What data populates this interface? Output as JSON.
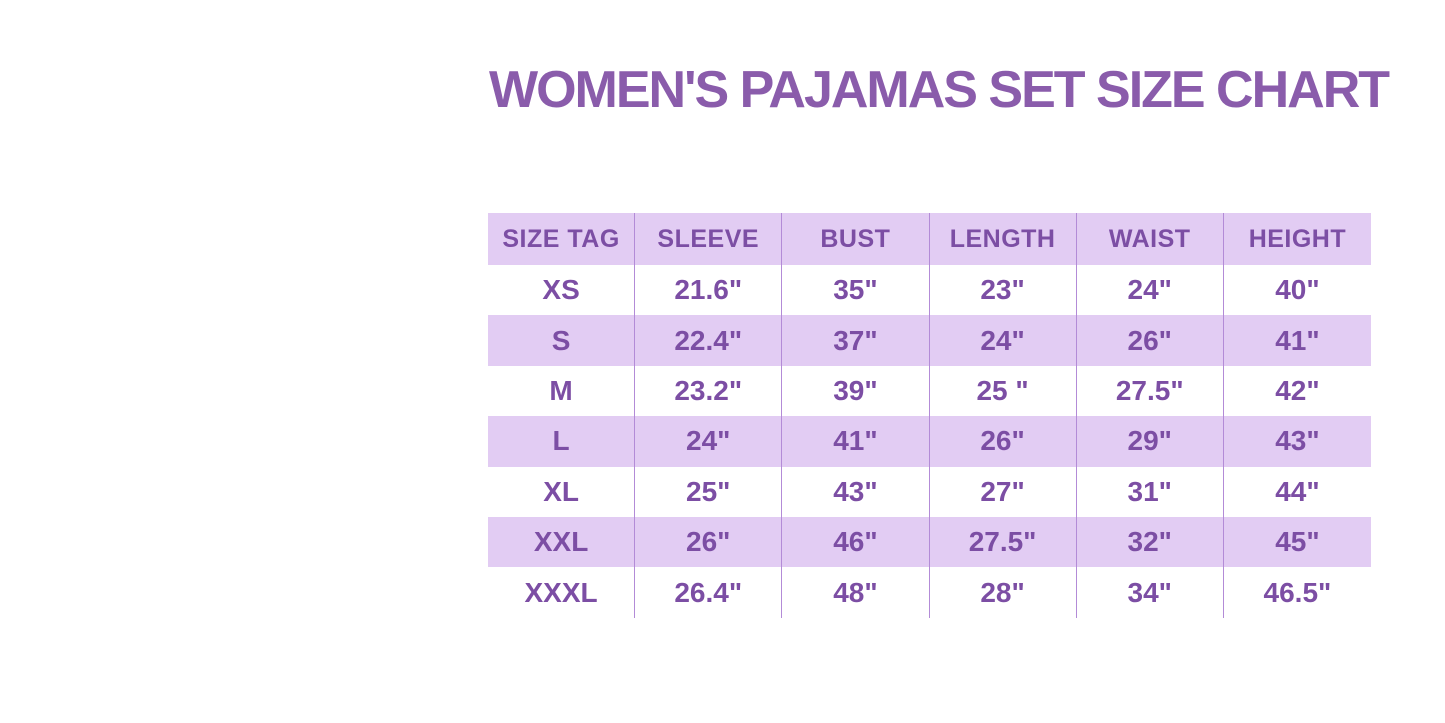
{
  "chart_data": {
    "type": "table",
    "title": "WOMEN'S PAJAMAS SET SIZE CHART",
    "columns": [
      "SIZE TAG",
      "SLEEVE",
      "BUST",
      "LENGTH",
      "WAIST",
      "HEIGHT"
    ],
    "rows": [
      [
        "XS",
        "21.6\"",
        "35\"",
        "23\"",
        "24\"",
        "40\""
      ],
      [
        "S",
        "22.4\"",
        "37\"",
        "24\"",
        "26\"",
        "41\""
      ],
      [
        "M",
        "23.2\"",
        "39\"",
        "25 \"",
        "27.5\"",
        "42\""
      ],
      [
        "L",
        "24\"",
        "41\"",
        "26\"",
        "29\"",
        "43\""
      ],
      [
        "XL",
        "25\"",
        "43\"",
        "27\"",
        "31\"",
        "44\""
      ],
      [
        "XXL",
        "26\"",
        "46\"",
        "27.5\"",
        "32\"",
        "45\""
      ],
      [
        "XXXL",
        "26.4\"",
        "48\"",
        "28\"",
        "34\"",
        "46.5\""
      ]
    ],
    "layout": {
      "striped_rows": [
        "header",
        "S",
        "L",
        "XXL"
      ],
      "grid": "vertical-dividers-only",
      "header_position": "top"
    }
  },
  "colors": {
    "title_color": "#8a5cab",
    "text_color": "#7c4ea4",
    "stripe_bg": "#e2ccf3",
    "divider_color": "#b38bd7",
    "page_bg": "#ffffff"
  }
}
